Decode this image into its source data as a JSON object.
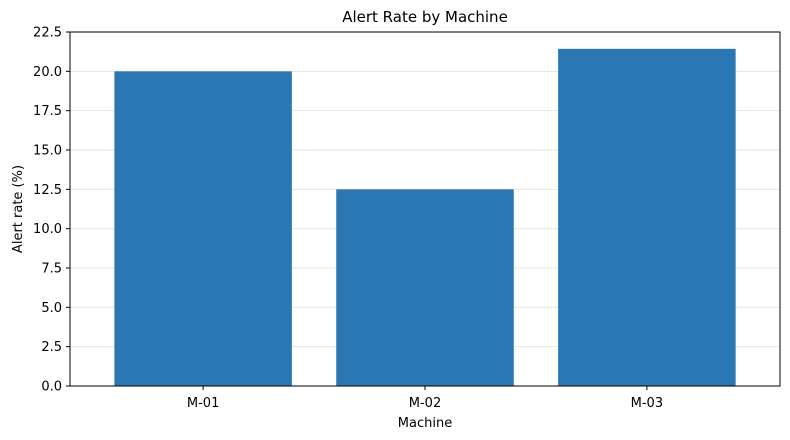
{
  "chart_data": {
    "type": "bar",
    "title": "Alert Rate by Machine",
    "xlabel": "Machine",
    "ylabel": "Alert rate (%)",
    "categories": [
      "M-01",
      "M-02",
      "M-03"
    ],
    "values": [
      20.0,
      12.5,
      21.43
    ],
    "ylim": [
      0,
      22.5
    ],
    "yticks": [
      "0.0",
      "2.5",
      "5.0",
      "7.5",
      "10.0",
      "12.5",
      "15.0",
      "17.5",
      "20.0",
      "22.5"
    ],
    "grid": "y",
    "bar_color": "#2a77b4",
    "grid_color": "#e5e5e5"
  }
}
